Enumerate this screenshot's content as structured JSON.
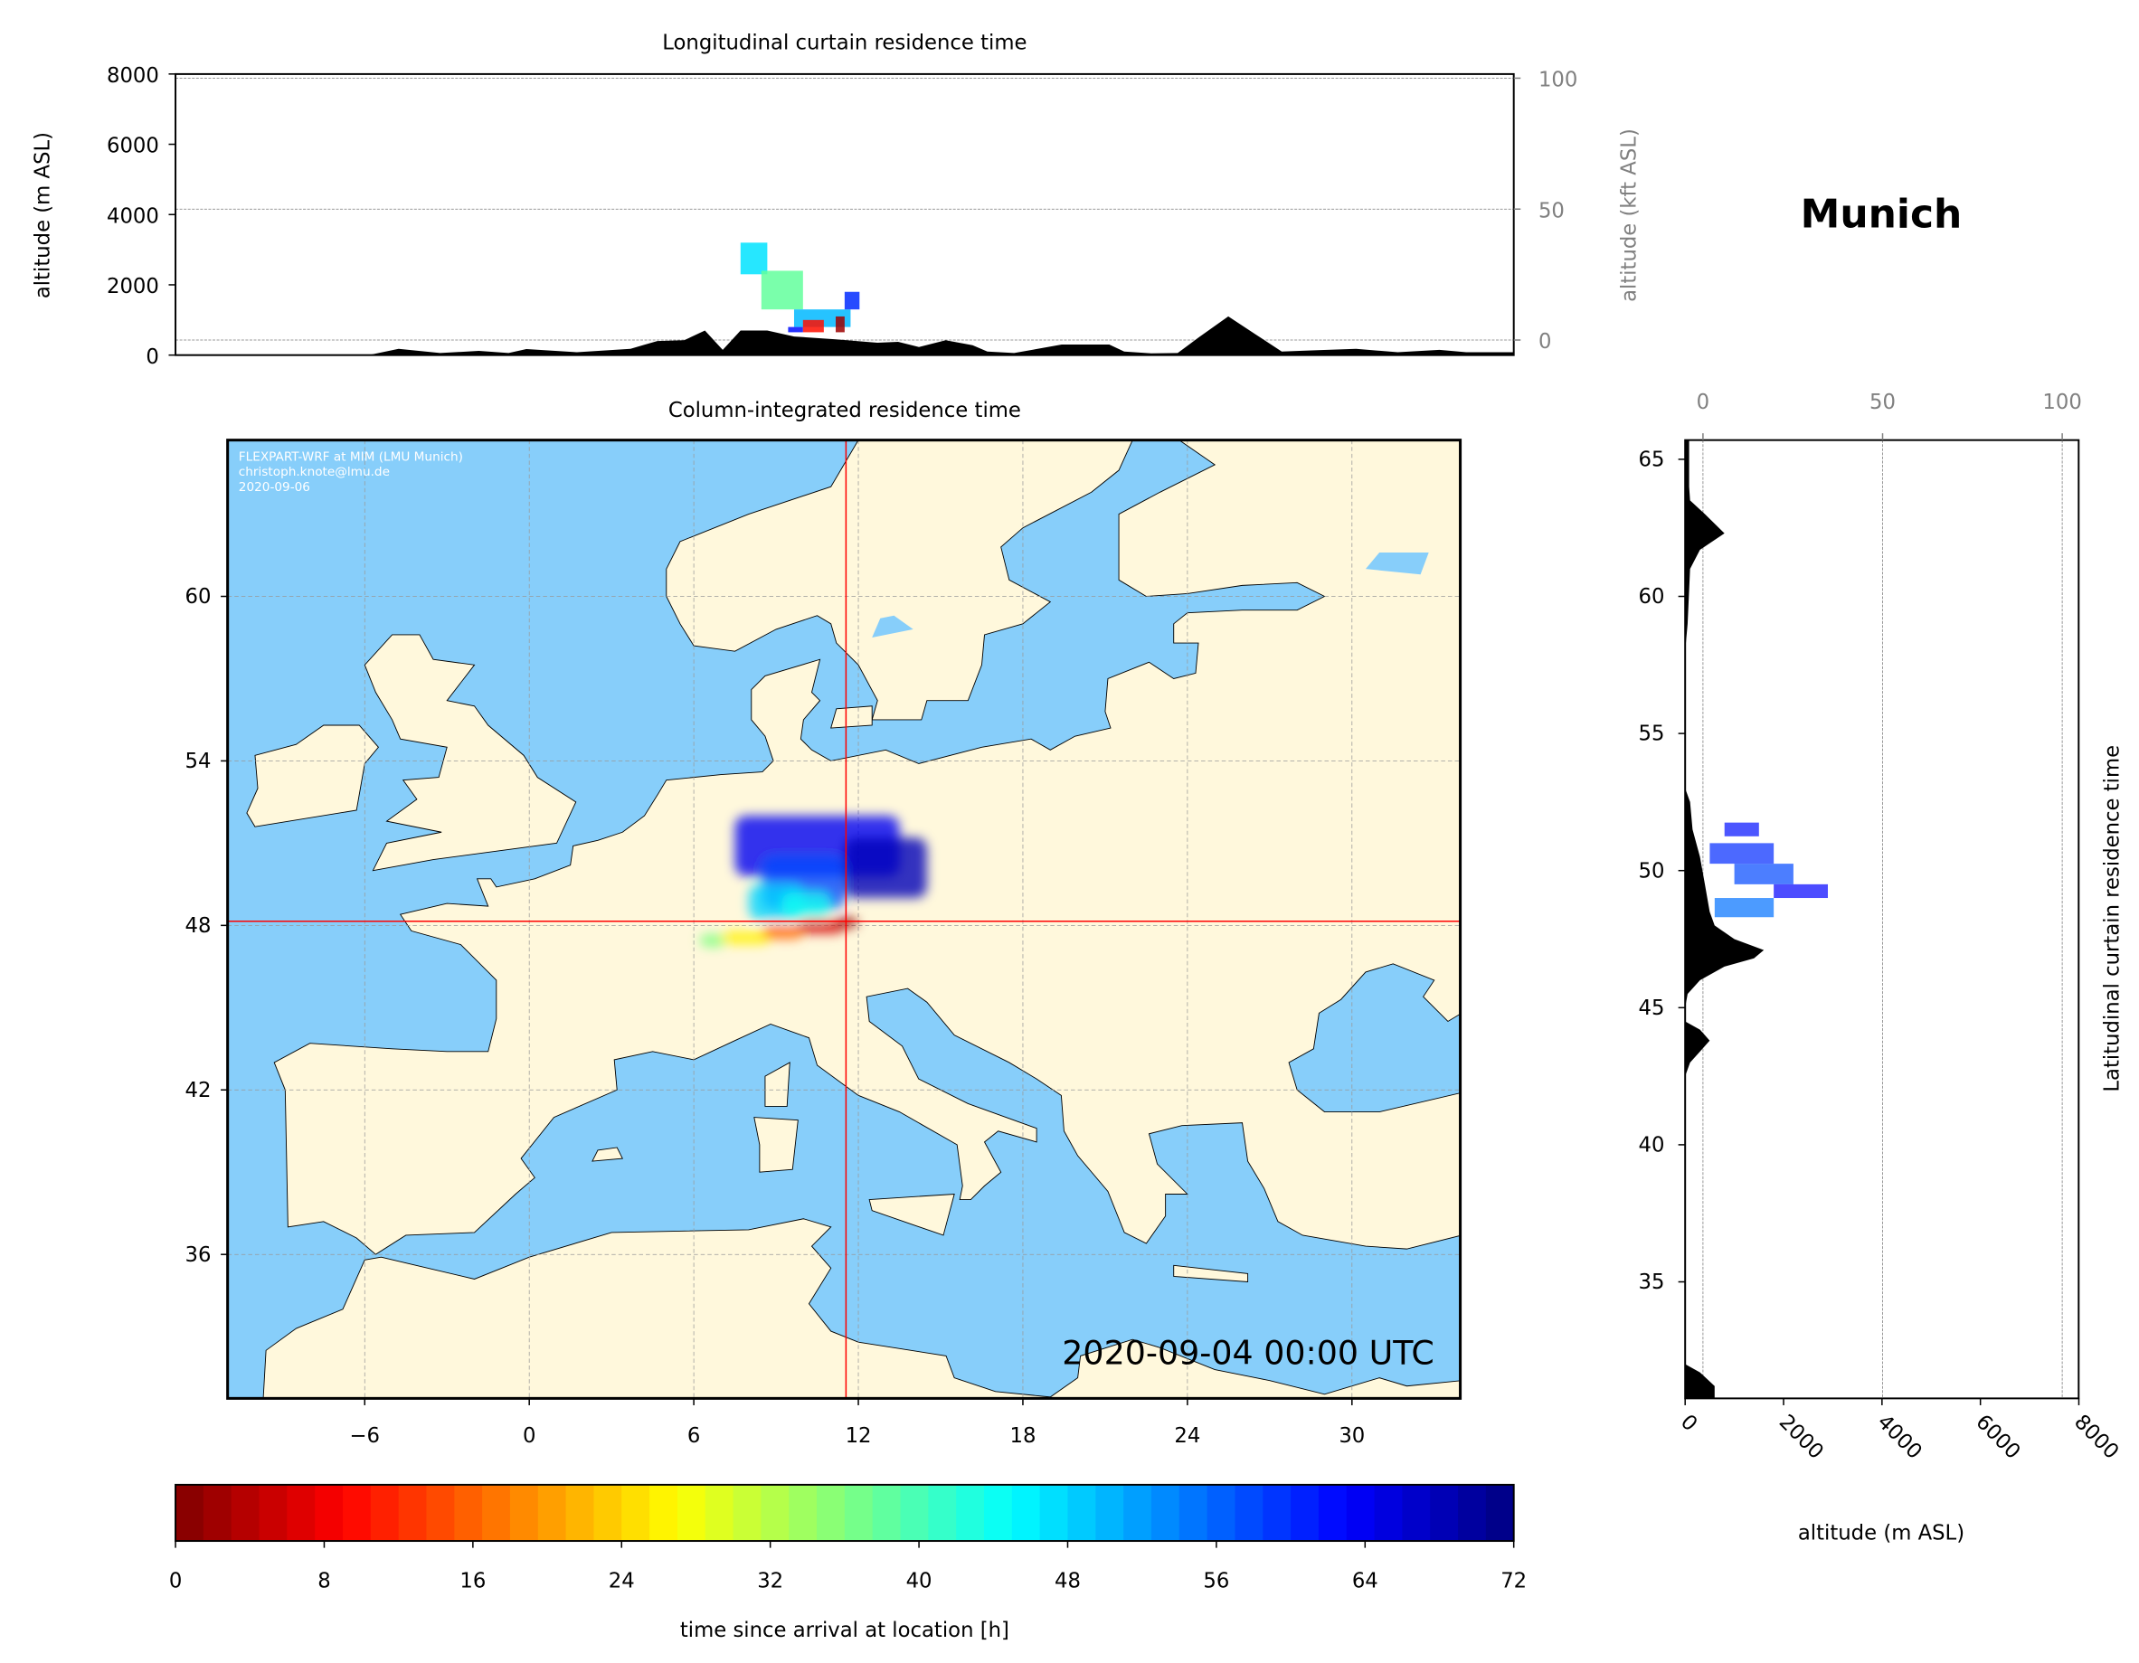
{
  "location": "Munich",
  "top_title": "Longitudinal curtain residence time",
  "map_title": "Column-integrated residence time",
  "right_title": "Latitudinal curtain residence time",
  "top_ylabel": "altitude (m ASL)",
  "top_ylabel_right": "altitude (kft ASL)",
  "right_xlabel": "altitude (m ASL)",
  "colorbar_label": "time since arrival at location [h]",
  "timestamp": "2020-09-04 00:00 UTC",
  "watermark": [
    "FLEXPART-WRF at MIM (LMU Munich)",
    "christoph.knote@lmu.de",
    "2020-09-06"
  ],
  "colors": {
    "sea": "#87CEFA",
    "land": "#FFF8DC",
    "terrain": "#000000",
    "crosshair": "#FF0000"
  },
  "chart_data": [
    {
      "type": "heatmap",
      "name": "map",
      "title": "Column-integrated residence time",
      "xticks": [
        -6,
        0,
        6,
        12,
        18,
        24,
        30
      ],
      "yticks": [
        36,
        42,
        48,
        54,
        60
      ],
      "xlim": [
        -11,
        34
      ],
      "ylim": [
        30.75,
        65.7
      ],
      "grid": true,
      "release_point": {
        "lon": 11.55,
        "lat": 48.15
      },
      "plume_regions": [
        {
          "lon": [
            7.5,
            13.5
          ],
          "lat": [
            49.8,
            52.0
          ],
          "hours": 64
        },
        {
          "lon": [
            11.5,
            14.5
          ],
          "lat": [
            49.0,
            51.2
          ],
          "hours": 68
        },
        {
          "lon": [
            8.5,
            11.5
          ],
          "lat": [
            48.6,
            50.5
          ],
          "hours": 58
        },
        {
          "lon": [
            8.0,
            10.0
          ],
          "lat": [
            48.2,
            49.5
          ],
          "hours": 48
        },
        {
          "lon": [
            9.2,
            11.0
          ],
          "lat": [
            48.3,
            49.2
          ],
          "hours": 44
        },
        {
          "lon": [
            6.2,
            7.2
          ],
          "lat": [
            47.2,
            47.7
          ],
          "hours": 36
        },
        {
          "lon": [
            7.0,
            8.8
          ],
          "lat": [
            47.3,
            47.8
          ],
          "hours": 26
        },
        {
          "lon": [
            8.5,
            10.0
          ],
          "lat": [
            47.5,
            48.0
          ],
          "hours": 16
        },
        {
          "lon": [
            9.8,
            11.5
          ],
          "lat": [
            47.7,
            48.2
          ],
          "hours": 6
        },
        {
          "lon": [
            11.2,
            12.0
          ],
          "lat": [
            47.9,
            48.3
          ],
          "hours": 1
        }
      ]
    },
    {
      "type": "area",
      "name": "longitudinal-curtain",
      "title": "Longitudinal curtain residence time",
      "ylabel": "altitude (m ASL)",
      "ylabel_right": "altitude (kft ASL)",
      "yticks": [
        0,
        2000,
        4000,
        6000,
        8000
      ],
      "yticks_right": [
        0,
        50,
        100
      ],
      "ylim": [
        0,
        8000
      ],
      "terrain": {
        "lon": [
          -11,
          -4.5,
          -3.5,
          -2.1,
          -0.8,
          0.2,
          0.8,
          2.5,
          4.3,
          5.2,
          6.1,
          6.8,
          7.4,
          8.0,
          8.9,
          9.8,
          11.2,
          12.6,
          13.3,
          14.0,
          14.9,
          15.8,
          16.3,
          17.2,
          18.8,
          20.4,
          20.9,
          21.8,
          22.7,
          23.4,
          24.4,
          25.3,
          26.2,
          27.4,
          28.7,
          30.1,
          31.5,
          32.4,
          34
        ],
        "alt": [
          0,
          0,
          180,
          60,
          120,
          60,
          170,
          80,
          180,
          400,
          420,
          700,
          150,
          700,
          700,
          530,
          450,
          350,
          380,
          230,
          420,
          280,
          100,
          60,
          300,
          300,
          100,
          50,
          60,
          500,
          1100,
          600,
          100,
          140,
          180,
          80,
          150,
          80,
          80
        ]
      },
      "plume": [
        {
          "lon": [
            8.0,
            8.9
          ],
          "alt": [
            2300,
            3200
          ],
          "hours": 47
        },
        {
          "lon": [
            8.7,
            10.1
          ],
          "alt": [
            1300,
            2400
          ],
          "hours": 38
        },
        {
          "lon": [
            9.8,
            11.7
          ],
          "alt": [
            800,
            1300
          ],
          "hours": 50
        },
        {
          "lon": [
            9.6,
            10.1
          ],
          "alt": [
            650,
            800
          ],
          "hours": 62
        },
        {
          "lon": [
            10.1,
            10.8
          ],
          "alt": [
            650,
            1000
          ],
          "hours": 10
        },
        {
          "lon": [
            11.2,
            11.5
          ],
          "alt": [
            650,
            1100
          ],
          "hours": 2
        },
        {
          "lon": [
            11.5,
            12.0
          ],
          "alt": [
            1300,
            1800
          ],
          "hours": 60
        }
      ]
    },
    {
      "type": "area",
      "name": "latitudinal-curtain",
      "title": "Latitudinal curtain residence time",
      "xlabel": "altitude (m ASL)",
      "xticks": [
        0,
        2000,
        4000,
        6000,
        8000
      ],
      "xticks_top": [
        0,
        50,
        100
      ],
      "yticks": [
        35,
        40,
        45,
        50,
        55,
        60,
        65
      ],
      "xlim": [
        0,
        8000
      ],
      "ylim": [
        30.75,
        65.7
      ],
      "terrain": {
        "lat": [
          65.7,
          64,
          63.5,
          63,
          62.3,
          61.7,
          61,
          59,
          58,
          53,
          52.5,
          51.5,
          50.5,
          49.5,
          48.5,
          48,
          47.5,
          47.1,
          46.8,
          46.5,
          46,
          45.5,
          45,
          44.5,
          44.2,
          43.8,
          43.4,
          43,
          42.5,
          32,
          31.7,
          31.2,
          30.75
        ],
        "alt": [
          80,
          80,
          100,
          400,
          800,
          300,
          100,
          50,
          0,
          0,
          100,
          150,
          300,
          400,
          500,
          600,
          1000,
          1600,
          1400,
          800,
          300,
          50,
          0,
          0,
          300,
          500,
          300,
          100,
          0,
          0,
          300,
          600,
          600
        ]
      },
      "plume": [
        {
          "lat": [
            51.25,
            51.75
          ],
          "alt": [
            800,
            1500
          ],
          "hours": 62
        },
        {
          "lat": [
            50.25,
            51.0
          ],
          "alt": [
            500,
            1800
          ],
          "hours": 60
        },
        {
          "lat": [
            49.5,
            50.25
          ],
          "alt": [
            1000,
            2200
          ],
          "hours": 58
        },
        {
          "lat": [
            49.0,
            49.5
          ],
          "alt": [
            1800,
            2900
          ],
          "hours": 63
        },
        {
          "lat": [
            48.3,
            49.0
          ],
          "alt": [
            600,
            1800
          ],
          "hours": 55
        },
        {
          "lat": [
            48.15,
            48.35
          ],
          "alt": [
            200,
            500
          ],
          "hours": 5
        }
      ]
    },
    {
      "type": "colorbar",
      "name": "colorbar",
      "label": "time since arrival at location [h]",
      "colormap": "jet_r",
      "range": [
        0,
        72
      ],
      "ticks": [
        0,
        8,
        16,
        24,
        32,
        40,
        48,
        56,
        64,
        72
      ]
    }
  ]
}
